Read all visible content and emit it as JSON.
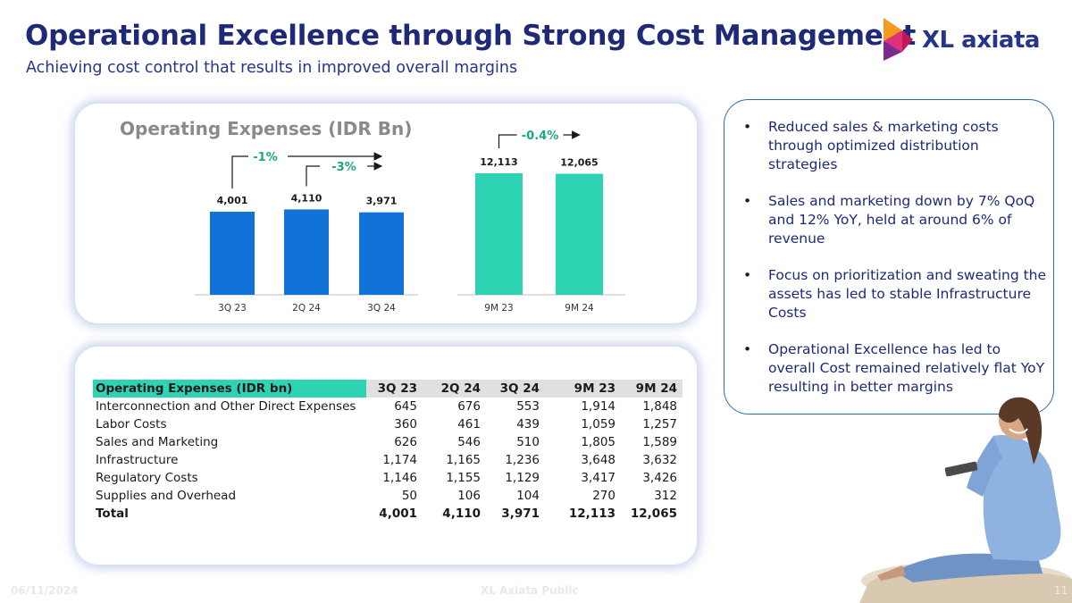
{
  "header": {
    "title": "Operational Excellence through Strong Cost Management",
    "subtitle": "Achieving cost control that results in improved overall margins"
  },
  "logo": {
    "text": "XL axiata",
    "colors": [
      "#e0307a",
      "#f39a1f",
      "#7b2a8e"
    ]
  },
  "chart_data": [
    {
      "type": "bar",
      "title": "Operating Expenses (IDR Bn)",
      "categories": [
        "3Q 23",
        "2Q 24",
        "3Q 24"
      ],
      "values": [
        4001,
        4110,
        3971
      ],
      "value_labels": [
        "4,001",
        "4,110",
        "3,971"
      ],
      "color": "#1173d8",
      "annotations": [
        {
          "label": "-1%",
          "from": "3Q 23",
          "to": "3Q 24"
        },
        {
          "label": "-3%",
          "from": "2Q 24",
          "to": "3Q 24"
        }
      ]
    },
    {
      "type": "bar",
      "categories": [
        "9M 23",
        "9M 24"
      ],
      "values": [
        12113,
        12065
      ],
      "value_labels": [
        "12,113",
        "12,065"
      ],
      "color": "#2ed3b4",
      "annotations": [
        {
          "label": "-0.4%",
          "from": "9M 23",
          "to": "9M 24"
        }
      ]
    }
  ],
  "bullets": [
    "Reduced sales & marketing costs through optimized distribution strategies",
    "Sales and marketing down by 7% QoQ and 12% YoY, held at around 6% of revenue",
    "Focus on prioritization and sweating the assets has led to stable Infrastructure Costs",
    "Operational Excellence has led to overall Cost remained relatively flat YoY resulting in better margins"
  ],
  "bullet_symbol": "•",
  "table": {
    "columns": [
      "Operating Expenses (IDR bn)",
      "3Q 23",
      "2Q 24",
      "3Q 24",
      "9M 23",
      "9M 24"
    ],
    "rows": [
      [
        "Interconnection and Other Direct Expenses",
        "645",
        "676",
        "553",
        "1,914",
        "1,848"
      ],
      [
        "Labor Costs",
        "360",
        "461",
        "439",
        "1,059",
        "1,257"
      ],
      [
        "Sales and Marketing",
        "626",
        "546",
        "510",
        "1,805",
        "1,589"
      ],
      [
        "Infrastructure",
        "1,174",
        "1,165",
        "1,236",
        "3,648",
        "3,632"
      ],
      [
        "Regulatory Costs",
        "1,146",
        "1,155",
        "1,129",
        "3,417",
        "3,426"
      ],
      [
        "Supplies and Overhead",
        "50",
        "106",
        "104",
        "270",
        "312"
      ],
      [
        "Total",
        "4,001",
        "4,110",
        "3,971",
        "12,113",
        "12,065"
      ]
    ]
  },
  "footer": {
    "date": "06/11/2024",
    "classification": "XL Axiata Public",
    "page": "11"
  }
}
